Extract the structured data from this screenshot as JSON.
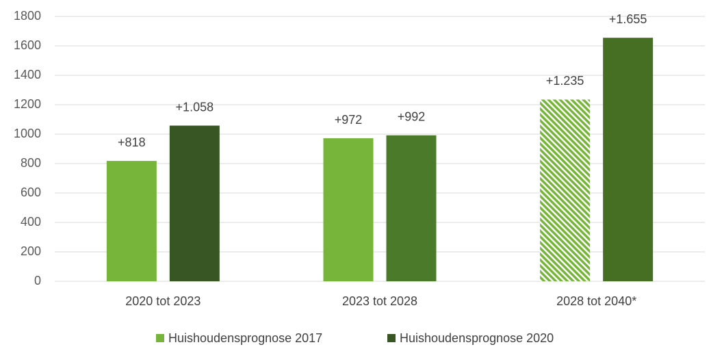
{
  "chart_data": {
    "type": "bar",
    "categories": [
      "2020 tot 2023",
      "2023 tot 2028",
      "2028 tot 2040*"
    ],
    "series": [
      {
        "name": "Huishoudensprognose 2017",
        "color": "#76b43a",
        "colors": [
          "#76b43a",
          "#76b43a",
          "#76b43a"
        ],
        "hatch": [
          false,
          false,
          true
        ],
        "values": [
          818,
          972,
          1235
        ],
        "value_labels": [
          "+818",
          "+972",
          "+1.235"
        ]
      },
      {
        "name": "Huishoudensprognose 2020",
        "color": "#375623",
        "colors": [
          "#375623",
          "#4a7a2a",
          "#466f23"
        ],
        "hatch": [
          false,
          false,
          false
        ],
        "values": [
          1058,
          992,
          1655
        ],
        "value_labels": [
          "+1.058",
          "+992",
          "+1.655"
        ]
      }
    ],
    "ylim": [
      0,
      1800
    ],
    "yticks": [
      0,
      200,
      400,
      600,
      800,
      1000,
      1200,
      1400,
      1600,
      1800
    ],
    "grid": true,
    "legend": "bottom"
  }
}
